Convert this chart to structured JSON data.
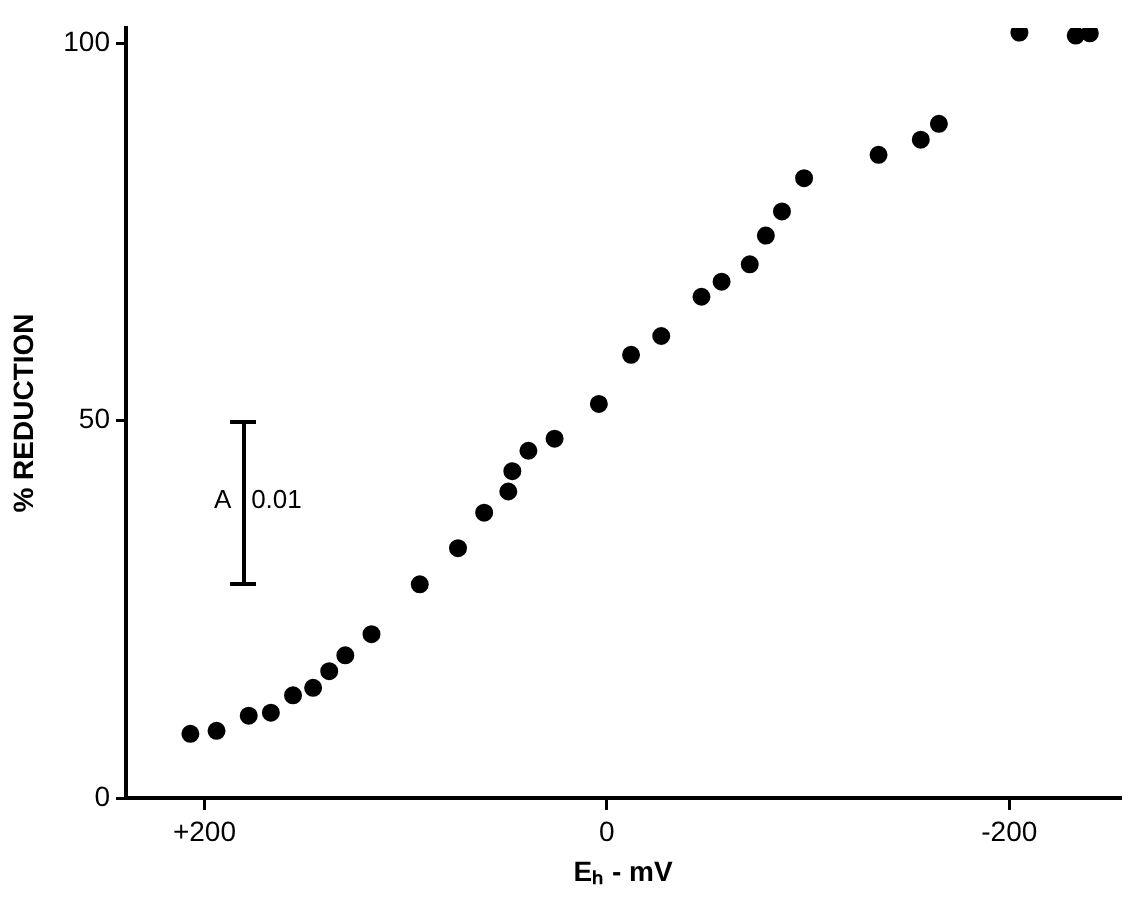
{
  "chart_data": {
    "type": "scatter",
    "xlabel": "Eₕ - mV",
    "ylabel": "% REDUCTION",
    "x": [
      207,
      194,
      178,
      167,
      156,
      146,
      138,
      130,
      117,
      93,
      74,
      61,
      49,
      47,
      39,
      26,
      4,
      -12,
      -27,
      -47,
      -57,
      -71,
      -79,
      -87,
      -98,
      -135,
      -156,
      -165,
      -205,
      -233,
      -240
    ],
    "values": [
      8.5,
      8.9,
      10.9,
      11.3,
      13.6,
      14.6,
      16.8,
      18.9,
      21.7,
      28.3,
      33.1,
      37.8,
      40.6,
      43.3,
      46.0,
      47.6,
      52.2,
      58.7,
      61.2,
      66.4,
      68.4,
      70.7,
      74.5,
      77.7,
      82.1,
      85.2,
      87.2,
      89.3,
      101.4,
      101.0,
      101.3
    ],
    "color": "#000000",
    "marker": "circle",
    "xlim": [
      239,
      -255
    ],
    "xticks": [
      {
        "value": 200,
        "label": "+200"
      },
      0,
      -200
    ],
    "ylim": [
      0,
      102
    ],
    "yticks": [
      0,
      50,
      100
    ],
    "grid": false,
    "legend": false,
    "annotations": [
      "A 0.01"
    ]
  }
}
